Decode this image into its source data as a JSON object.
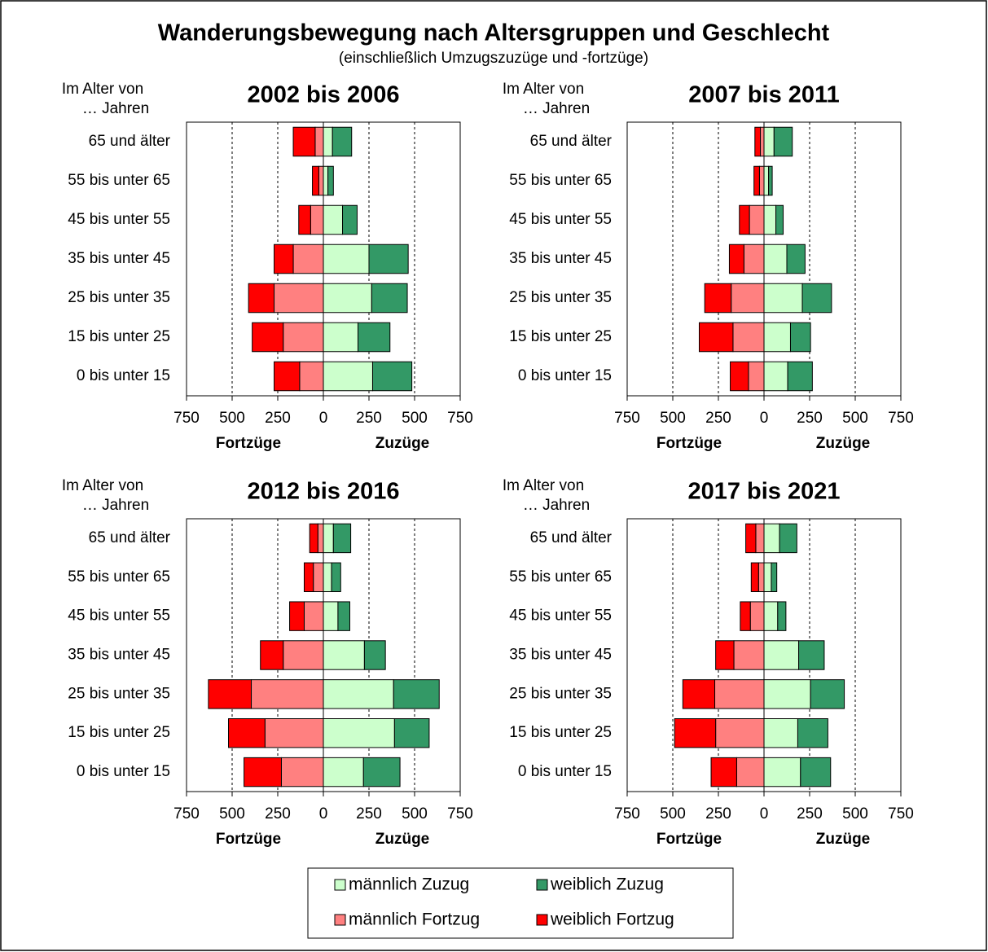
{
  "title": "Wanderungsbewegung nach Altersgruppen und Geschlecht",
  "subtitle": "(einschließlich Umzugszuzüge und -fortzüge)",
  "legend": [
    {
      "name": "männlich Zuzug",
      "color": "#ccffcc"
    },
    {
      "name": "weiblich Zuzug",
      "color": "#339966"
    },
    {
      "name": "männlich Fortzug",
      "color": "#ff8080"
    },
    {
      "name": "weiblich Fortzug",
      "color": "#ff0000"
    }
  ],
  "chart_data": [
    {
      "type": "diverging-bar",
      "title": "2002 bis 2006",
      "ylabel": [
        "Im Alter von",
        "… Jahren"
      ],
      "xlabel_left": "Fortzüge",
      "xlabel_right": "Zuzüge",
      "categories": [
        "65 und älter",
        "55 bis unter 65",
        "45 bis unter 55",
        "35 bis unter 45",
        "25 bis unter 35",
        "15 bis unter 25",
        "0 bis unter 15"
      ],
      "xlim": [
        -750,
        750
      ],
      "xticks": [
        {
          "value": -750,
          "label": "750"
        },
        {
          "value": -500,
          "label": "500"
        },
        {
          "value": -250,
          "label": "250"
        },
        0,
        250,
        500,
        750
      ],
      "series": [
        {
          "values": [
            50,
            25,
            105,
            250,
            265,
            190,
            270
          ]
        },
        {
          "values": [
            105,
            30,
            80,
            215,
            195,
            175,
            215
          ]
        },
        {
          "values": [
            -45,
            -25,
            -70,
            -165,
            -270,
            -220,
            -130
          ]
        },
        {
          "values": [
            -120,
            -35,
            -65,
            -105,
            -140,
            -170,
            -140
          ]
        }
      ]
    },
    {
      "type": "diverging-bar",
      "title": "2007 bis 2011",
      "ylabel": [
        "Im Alter von",
        "… Jahren"
      ],
      "xlabel_left": "Fortzüge",
      "xlabel_right": "Zuzüge",
      "categories": [
        "65 und älter",
        "55 bis unter 65",
        "45 bis unter 55",
        "35 bis unter 45",
        "25 bis unter 35",
        "15 bis unter 25",
        "0 bis unter 15"
      ],
      "xlim": [
        -750,
        750
      ],
      "xticks": [
        {
          "value": -750,
          "label": "750"
        },
        {
          "value": -500,
          "label": "500"
        },
        {
          "value": -250,
          "label": "250"
        },
        0,
        250,
        500,
        750
      ],
      "series": [
        {
          "values": [
            55,
            25,
            65,
            125,
            210,
            145,
            130
          ]
        },
        {
          "values": [
            100,
            20,
            40,
            100,
            160,
            110,
            135
          ]
        },
        {
          "values": [
            -20,
            -25,
            -80,
            -110,
            -180,
            -170,
            -85
          ]
        },
        {
          "values": [
            -30,
            -30,
            -55,
            -80,
            -145,
            -185,
            -100
          ]
        }
      ]
    },
    {
      "type": "diverging-bar",
      "title": "2012 bis 2016",
      "ylabel": [
        "Im Alter von",
        "… Jahren"
      ],
      "xlabel_left": "Fortzüge",
      "xlabel_right": "Zuzüge",
      "categories": [
        "65 und älter",
        "55 bis unter 65",
        "45 bis unter 55",
        "35 bis unter 45",
        "25 bis unter 35",
        "15 bis unter 25",
        "0 bis unter 15"
      ],
      "xlim": [
        -750,
        750
      ],
      "xticks": [
        {
          "value": -750,
          "label": "750"
        },
        {
          "value": -500,
          "label": "500"
        },
        {
          "value": -250,
          "label": "250"
        },
        0,
        250,
        500,
        750
      ],
      "series": [
        {
          "values": [
            55,
            45,
            80,
            225,
            385,
            390,
            220
          ]
        },
        {
          "values": [
            95,
            50,
            65,
            115,
            250,
            190,
            200
          ]
        },
        {
          "values": [
            -30,
            -55,
            -105,
            -220,
            -395,
            -320,
            -230
          ]
        },
        {
          "values": [
            -45,
            -50,
            -80,
            -125,
            -235,
            -200,
            -205
          ]
        }
      ]
    },
    {
      "type": "diverging-bar",
      "title": "2017 bis 2021",
      "ylabel": [
        "Im Alter von",
        "… Jahren"
      ],
      "xlabel_left": "Fortzüge",
      "xlabel_right": "Zuzüge",
      "categories": [
        "65 und älter",
        "55 bis unter 65",
        "45 bis unter 55",
        "35 bis unter 45",
        "25 bis unter 35",
        "15 bis unter 25",
        "0 bis unter 15"
      ],
      "xlim": [
        -750,
        750
      ],
      "xticks": [
        {
          "value": -750,
          "label": "750"
        },
        {
          "value": -500,
          "label": "500"
        },
        {
          "value": -250,
          "label": "250"
        },
        0,
        250,
        500,
        750
      ],
      "series": [
        {
          "values": [
            85,
            40,
            75,
            190,
            255,
            185,
            200
          ]
        },
        {
          "values": [
            95,
            30,
            45,
            140,
            185,
            165,
            165
          ]
        },
        {
          "values": [
            -45,
            -30,
            -75,
            -165,
            -270,
            -265,
            -150
          ]
        },
        {
          "values": [
            -55,
            -40,
            -55,
            -100,
            -175,
            -225,
            -140
          ]
        }
      ]
    }
  ]
}
